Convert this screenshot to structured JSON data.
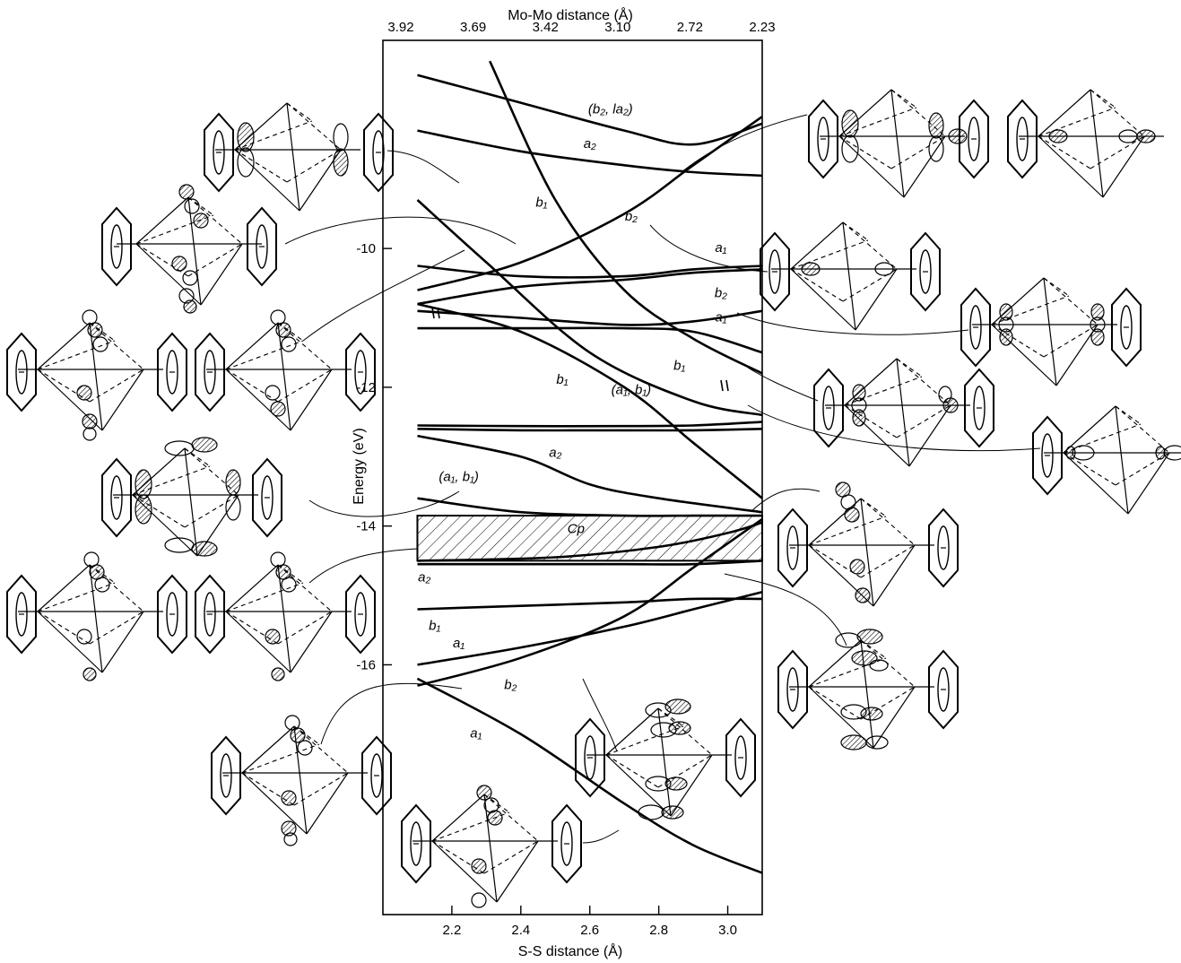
{
  "chart_data": {
    "type": "line",
    "top_axis": {
      "label": "Mo-Mo distance  (Å)",
      "ticks": [
        "3.92",
        "3.69",
        "3.42",
        "3.10",
        "2.72",
        "2.23"
      ]
    },
    "x_axis": {
      "label": "S-S distance (Å)",
      "range": [
        2.0,
        3.1
      ],
      "ticks": [
        {
          "value": 2.2,
          "label": "2.2"
        },
        {
          "value": 2.4,
          "label": "2.4"
        },
        {
          "value": 2.6,
          "label": "2.6"
        },
        {
          "value": 2.8,
          "label": "2.8"
        },
        {
          "value": 3.0,
          "label": "3.0"
        }
      ]
    },
    "y_axis": {
      "label": "Energy (eV)",
      "range": [
        -19.6,
        -7.0
      ],
      "ticks": [
        {
          "value": -10,
          "label": "-10"
        },
        {
          "value": -12,
          "label": "-12"
        },
        {
          "value": -14,
          "label": "-14"
        },
        {
          "value": -16,
          "label": "-16"
        }
      ]
    },
    "cp_band": {
      "label": "Cp",
      "x_range": [
        2.1,
        3.1
      ],
      "y_range": [
        -14.5,
        -13.85
      ]
    },
    "series": [
      {
        "x": [
          2.1,
          2.4,
          2.7,
          2.9,
          3.1
        ],
        "y": [
          -7.5,
          -7.9,
          -8.3,
          -8.5,
          -8.2
        ]
      },
      {
        "x": [
          2.1,
          2.4,
          2.7,
          2.9,
          3.1
        ],
        "y": [
          -8.3,
          -8.6,
          -8.8,
          -8.9,
          -8.95
        ]
      },
      {
        "x": [
          2.31,
          2.5,
          2.7,
          2.9,
          3.1
        ],
        "y": [
          -7.3,
          -9.3,
          -10.6,
          -11.3,
          -11.8
        ]
      },
      {
        "x": [
          2.1,
          2.4,
          2.7,
          2.9,
          3.1
        ],
        "y": [
          -10.6,
          -10.2,
          -9.5,
          -8.8,
          -8.1
        ]
      },
      {
        "x": [
          2.1,
          2.3,
          2.6,
          2.9,
          3.1
        ],
        "y": [
          -9.3,
          -10.2,
          -11.5,
          -12.2,
          -12.4
        ]
      },
      {
        "x": [
          2.1,
          2.4,
          2.7,
          2.9,
          3.1
        ],
        "y": [
          -10.25,
          -10.4,
          -10.4,
          -10.3,
          -10.25
        ]
      },
      {
        "x": [
          2.1,
          2.4,
          2.7,
          2.9,
          3.1
        ],
        "y": [
          -10.8,
          -10.55,
          -10.45,
          -10.35,
          -10.3
        ]
      },
      {
        "x": [
          2.1,
          2.4,
          2.7,
          2.9,
          3.1
        ],
        "y": [
          -10.9,
          -11.0,
          -11.1,
          -11.05,
          -10.9
        ]
      },
      {
        "x": [
          2.1,
          2.4,
          2.7,
          2.9,
          3.1
        ],
        "y": [
          -10.8,
          -11.2,
          -12.0,
          -12.8,
          -13.6
        ]
      },
      {
        "x": [
          2.1,
          2.4,
          2.7,
          2.9,
          3.1
        ],
        "y": [
          -11.15,
          -11.15,
          -11.15,
          -11.2,
          -11.5
        ]
      },
      {
        "x": [
          2.1,
          2.4,
          2.7,
          2.9,
          3.1
        ],
        "y": [
          -12.55,
          -12.56,
          -12.56,
          -12.55,
          -12.5
        ]
      },
      {
        "x": [
          2.1,
          2.4,
          2.7,
          2.9,
          3.1
        ],
        "y": [
          -12.6,
          -12.62,
          -12.62,
          -12.62,
          -12.6
        ]
      },
      {
        "x": [
          2.1,
          2.4,
          2.6,
          2.8,
          3.1
        ],
        "y": [
          -12.7,
          -13.0,
          -13.4,
          -13.6,
          -13.8
        ]
      },
      {
        "x": [
          2.1,
          2.4,
          2.7,
          2.9,
          3.1
        ],
        "y": [
          -13.6,
          -13.8,
          -13.85,
          -13.85,
          -13.85
        ]
      },
      {
        "x": [
          2.1,
          2.5,
          2.8,
          3.0,
          3.1
        ],
        "y": [
          -14.5,
          -14.45,
          -14.3,
          -14.1,
          -13.95
        ]
      },
      {
        "x": [
          2.1,
          2.4,
          2.7,
          2.9,
          3.1
        ],
        "y": [
          -14.55,
          -14.55,
          -14.55,
          -14.55,
          -14.5
        ]
      },
      {
        "x": [
          2.1,
          2.4,
          2.7,
          2.9,
          3.1
        ],
        "y": [
          -15.2,
          -15.15,
          -15.1,
          -15.05,
          -15.05
        ]
      },
      {
        "x": [
          2.1,
          2.4,
          2.7,
          2.9,
          3.1
        ],
        "y": [
          -16.0,
          -15.75,
          -15.45,
          -15.2,
          -14.95
        ]
      },
      {
        "x": [
          2.1,
          2.4,
          2.7,
          2.9,
          3.1
        ],
        "y": [
          -16.3,
          -15.9,
          -15.3,
          -14.6,
          -13.9
        ]
      },
      {
        "x": [
          2.1,
          2.4,
          2.7,
          2.9,
          3.1
        ],
        "y": [
          -16.2,
          -17.0,
          -18.0,
          -18.6,
          -19.0
        ]
      }
    ],
    "labels": [
      {
        "text": "(b₂, la₂)",
        "x": 2.66,
        "y": -8.05
      },
      {
        "text": "a₂",
        "x": 2.6,
        "y": -8.55
      },
      {
        "text": "b₁",
        "x": 2.46,
        "y": -9.4
      },
      {
        "text": "b₂",
        "x": 2.72,
        "y": -9.6
      },
      {
        "text": "a₁",
        "x": 2.98,
        "y": -10.05
      },
      {
        "text": "b₂",
        "x": 2.98,
        "y": -10.7
      },
      {
        "text": "a₁",
        "x": 2.98,
        "y": -11.05
      },
      {
        "text": "b₁",
        "x": 2.52,
        "y": -11.95
      },
      {
        "text": "(a₁, b₁)",
        "x": 2.72,
        "y": -12.1
      },
      {
        "text": "b₁",
        "x": 2.86,
        "y": -11.75
      },
      {
        "text": "a₂",
        "x": 2.5,
        "y": -13.0
      },
      {
        "text": "(a₁, b₁)",
        "x": 2.22,
        "y": -13.35
      },
      {
        "text": "Cp",
        "x": 2.56,
        "y": -14.1
      },
      {
        "text": "a₂",
        "x": 2.12,
        "y": -14.8
      },
      {
        "text": "b₁",
        "x": 2.15,
        "y": -15.5
      },
      {
        "text": "a₁",
        "x": 2.22,
        "y": -15.75
      },
      {
        "text": "b₂",
        "x": 2.37,
        "y": -16.35
      },
      {
        "text": "a₁",
        "x": 2.27,
        "y": -17.05
      }
    ]
  }
}
